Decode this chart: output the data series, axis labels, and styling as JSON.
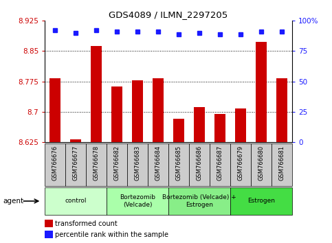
{
  "title": "GDS4089 / ILMN_2297205",
  "samples": [
    "GSM766676",
    "GSM766677",
    "GSM766678",
    "GSM766682",
    "GSM766683",
    "GSM766684",
    "GSM766685",
    "GSM766686",
    "GSM766687",
    "GSM766679",
    "GSM766680",
    "GSM766681"
  ],
  "bar_values": [
    8.782,
    8.632,
    8.862,
    8.762,
    8.778,
    8.782,
    8.682,
    8.712,
    8.695,
    8.708,
    8.872,
    8.782
  ],
  "percentile_values": [
    92,
    90,
    92,
    91,
    91,
    91,
    89,
    90,
    89,
    89,
    91,
    91
  ],
  "ymin": 8.625,
  "ymax": 8.925,
  "yticks": [
    8.625,
    8.7,
    8.775,
    8.85,
    8.925
  ],
  "ytick_labels": [
    "8.625",
    "8.7",
    "8.775",
    "8.85",
    "8.925"
  ],
  "y2min": 0,
  "y2max": 100,
  "y2ticks": [
    0,
    25,
    50,
    75,
    100
  ],
  "y2tick_labels": [
    "0",
    "25",
    "50",
    "75",
    "100%"
  ],
  "bar_color": "#cc0000",
  "dot_color": "#1a1aff",
  "groups": [
    {
      "label": "control",
      "start": 0,
      "end": 3,
      "color": "#ccffcc"
    },
    {
      "label": "Bortezomib\n(Velcade)",
      "start": 3,
      "end": 6,
      "color": "#aaffaa"
    },
    {
      "label": "Bortezomib (Velcade) +\nEstrogen",
      "start": 6,
      "end": 9,
      "color": "#88ee88"
    },
    {
      "label": "Estrogen",
      "start": 9,
      "end": 12,
      "color": "#44dd44"
    }
  ],
  "agent_label": "agent",
  "legend_bar_label": "transformed count",
  "legend_dot_label": "percentile rank within the sample",
  "left_tick_color": "#cc0000",
  "right_tick_color": "#1a1aff",
  "grid_lines": [
    8.7,
    8.775,
    8.85
  ],
  "sample_box_color": "#cccccc",
  "figure_bg": "#ffffff"
}
